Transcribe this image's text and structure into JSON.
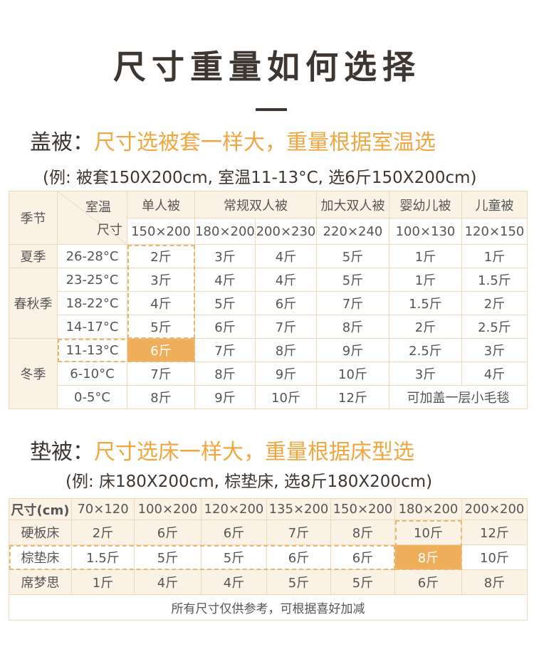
{
  "title": "尺寸重量如何选择",
  "quilt": {
    "label": "盖被：",
    "heading": "尺寸选被套一样大，重量根据室温选",
    "example": "(例: 被套150X200cm, 室温11-13°C, 选6斤150X200cm)",
    "table": {
      "season_header": "季节",
      "temp_header": "室温",
      "size_header": "尺寸",
      "groups": [
        "单人被",
        "常规双人被",
        "加大双人被",
        "婴幼儿被",
        "儿童被"
      ],
      "sizes": [
        "150×200",
        "180×200",
        "200×230",
        "220×240",
        "100×130",
        "120×150"
      ],
      "seasons": [
        {
          "name": "夏季",
          "rows": [
            {
              "temp": "26-28°C",
              "cells": [
                "2斤",
                "3斤",
                "4斤",
                "5斤",
                "1斤",
                "1斤"
              ]
            }
          ]
        },
        {
          "name": "春秋季",
          "rows": [
            {
              "temp": "23-25°C",
              "cells": [
                "3斤",
                "4斤",
                "4斤",
                "5斤",
                "1斤",
                "1.5斤"
              ]
            },
            {
              "temp": "18-22°C",
              "cells": [
                "4斤",
                "5斤",
                "6斤",
                "7斤",
                "1.5斤",
                "2斤"
              ]
            },
            {
              "temp": "14-17°C",
              "cells": [
                "5斤",
                "6斤",
                "7斤",
                "8斤",
                "2斤",
                "2.5斤"
              ]
            }
          ]
        },
        {
          "name": "冬季",
          "rows": [
            {
              "temp": "11-13°C",
              "cells": [
                "6斤",
                "7斤",
                "8斤",
                "9斤",
                "2.5斤",
                "3斤"
              ]
            },
            {
              "temp": "6-10°C",
              "cells": [
                "7斤",
                "8斤",
                "9斤",
                "10斤",
                "3斤",
                "4斤"
              ]
            },
            {
              "temp": "0-5°C",
              "cells": [
                "8斤",
                "9斤",
                "10斤",
                "12斤",
                "可加盖一层小毛毯"
              ]
            }
          ]
        }
      ]
    }
  },
  "mattress": {
    "label": "垫被：",
    "heading": "尺寸选床一样大，重量根据床型选",
    "example": "(例: 床180X200cm, 棕垫床, 选8斤180X200cm)",
    "table": {
      "size_header": "尺寸(cm)",
      "sizes": [
        "70×120",
        "100×200",
        "120×200",
        "135×200",
        "150×200",
        "180×200",
        "200×200"
      ],
      "rows": [
        {
          "bed": "硬板床",
          "cells": [
            "2斤",
            "6斤",
            "6斤",
            "7斤",
            "8斤",
            "10斤",
            "12斤"
          ]
        },
        {
          "bed": "棕垫床",
          "cells": [
            "1.5斤",
            "5斤",
            "5斤",
            "6斤",
            "6斤",
            "8斤",
            "10斤"
          ]
        },
        {
          "bed": "席梦思",
          "cells": [
            "1斤",
            "4斤",
            "4斤",
            "5斤",
            "5斤",
            "6斤",
            "8斤"
          ]
        }
      ],
      "note": "所有尺寸仅供参考，可根据喜好加减"
    }
  }
}
